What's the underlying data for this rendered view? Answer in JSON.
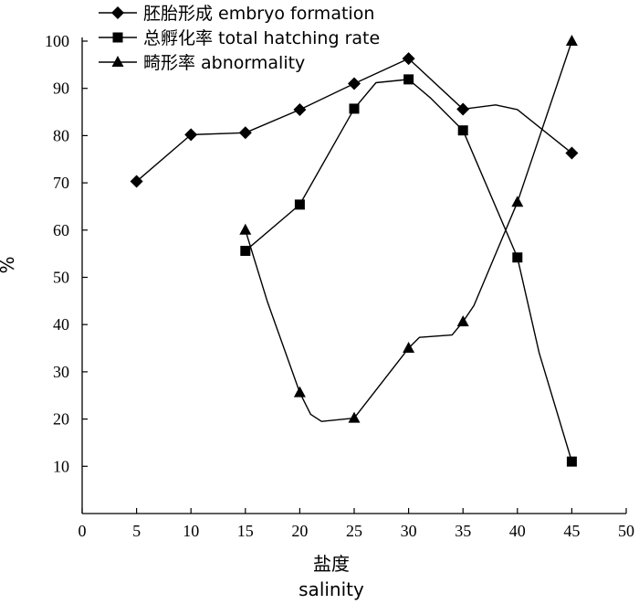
{
  "chart_data": {
    "type": "line",
    "ylabel": "%",
    "xlabel_cn": "盐度",
    "xlabel_en": "salinity",
    "xlim": [
      0,
      50
    ],
    "ylim": [
      0,
      100
    ],
    "xticks": [
      0,
      5,
      10,
      15,
      20,
      25,
      30,
      35,
      40,
      45,
      50
    ],
    "yticks": [
      10,
      20,
      30,
      40,
      50,
      60,
      70,
      80,
      90,
      100
    ],
    "grid": false,
    "legend_position": "top-left",
    "series": [
      {
        "name": "胚胎形成 embryo formation",
        "marker": "diamond",
        "x": [
          5,
          10,
          15,
          20,
          25,
          30,
          35,
          45
        ],
        "y": [
          70.3,
          80.2,
          80.6,
          85.5,
          91.0,
          96.3,
          85.6,
          76.3
        ],
        "curve_x": [
          5,
          10,
          15,
          20,
          25,
          30,
          35,
          38,
          40,
          45
        ],
        "curve_y": [
          70.3,
          80.2,
          80.6,
          85.5,
          91.0,
          96.3,
          85.6,
          86.5,
          85.5,
          76.3
        ]
      },
      {
        "name": "总孵化率 total hatching rate",
        "marker": "square",
        "x": [
          15,
          20,
          25,
          30,
          35,
          40,
          45
        ],
        "y": [
          55.6,
          65.4,
          85.7,
          91.9,
          81.1,
          54.2,
          11.0
        ],
        "curve_x": [
          15,
          20,
          25,
          27,
          30,
          32,
          35,
          40,
          42,
          45
        ],
        "curve_y": [
          55.6,
          65.4,
          85.7,
          91.2,
          91.9,
          88.0,
          81.1,
          54.2,
          34.0,
          11.0
        ]
      },
      {
        "name": "畸形率 abnormality",
        "marker": "triangle",
        "x": [
          15,
          20,
          25,
          30,
          35,
          40,
          45
        ],
        "y": [
          60.0,
          25.6,
          20.2,
          35.0,
          40.6,
          65.9,
          100.0
        ],
        "curve_x": [
          15,
          17,
          20,
          21,
          22,
          25,
          30,
          31,
          34,
          35,
          36,
          40,
          45
        ],
        "curve_y": [
          60.0,
          45.0,
          25.6,
          21.0,
          19.5,
          20.2,
          35.0,
          37.3,
          37.8,
          40.6,
          44.0,
          65.9,
          100.0
        ]
      }
    ]
  }
}
